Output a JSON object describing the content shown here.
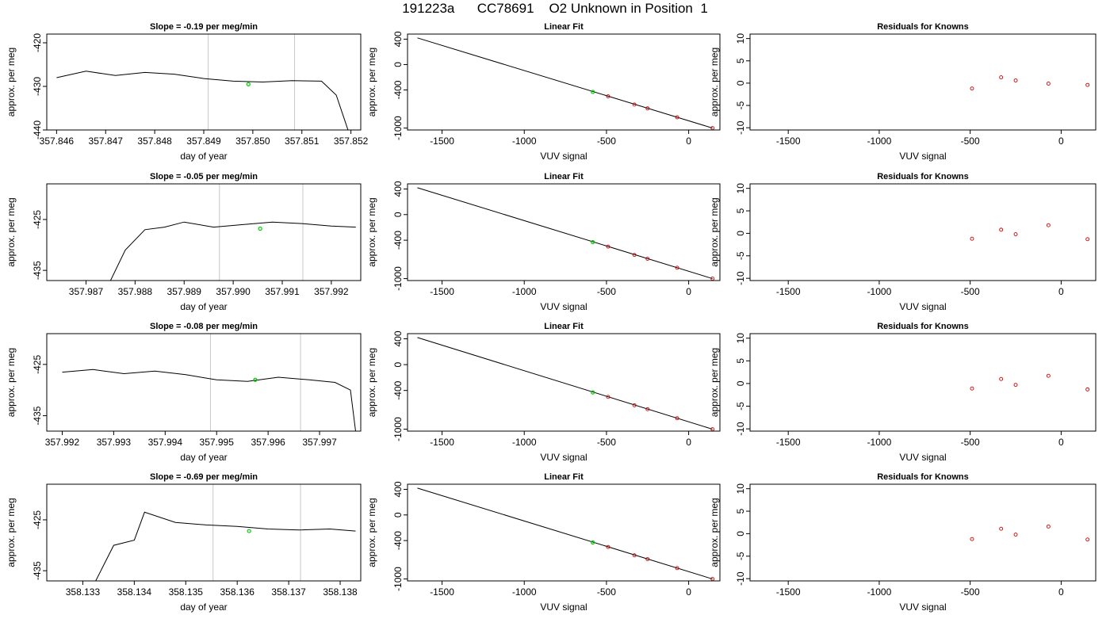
{
  "title": "191223a      CC78691    O2 Unknown in Position  1",
  "chart_data": [
    {
      "type": "line",
      "title": "Slope =  -0.19  per meg/min",
      "xlabel": "day of year",
      "ylabel": "approx. per meg",
      "xlim": [
        357.8458,
        357.8522
      ],
      "ylim": [
        -440,
        -418
      ],
      "xticks": [
        357.846,
        357.847,
        357.848,
        357.849,
        357.85,
        357.851,
        357.852
      ],
      "xtick_labels": [
        "357.846",
        "357.847",
        "357.848",
        "357.849",
        "357.850",
        "357.851",
        "357.852"
      ],
      "yticks": [
        -420,
        -430,
        -440
      ],
      "ytick_labels": [
        "-420",
        "-430",
        "-440"
      ],
      "vlines": [
        357.84909,
        357.85085
      ],
      "series": [
        {
          "x": [
            357.846,
            357.8466,
            357.8472,
            357.8478,
            357.8484,
            357.849,
            357.8496,
            357.8502,
            357.8508,
            357.8514,
            357.8517,
            357.852
          ],
          "y": [
            -428,
            -426.5,
            -427.5,
            -426.8,
            -427.2,
            -428.2,
            -428.8,
            -429.0,
            -428.7,
            -428.8,
            -432.0,
            -442.0
          ]
        }
      ],
      "marker": {
        "x": 357.84991,
        "y": -429.5
      }
    },
    {
      "type": "line",
      "title": "Linear Fit",
      "xlabel": "VUV signal",
      "ylabel": "approx. per meg",
      "xlim": [
        -1710,
        190
      ],
      "ylim": [
        -1030,
        480
      ],
      "xticks": [
        -1500,
        -1000,
        -500,
        0
      ],
      "xtick_labels": [
        "-1500",
        "-1000",
        "-500",
        "0"
      ],
      "yticks": [
        400,
        0,
        -400,
        -1000
      ],
      "ytick_labels": [
        "400",
        "0",
        "-400",
        "-1000"
      ],
      "fit_line": {
        "x": [
          -1650,
          145
        ],
        "y": [
          420,
          -1000
        ]
      },
      "points": {
        "x": [
          -490,
          -330,
          -250,
          -70,
          145
        ],
        "y": [
          -500,
          -630,
          -690,
          -830,
          -1000
        ]
      },
      "highlight": {
        "x": -583,
        "y": -430
      }
    },
    {
      "type": "scatter",
      "title": "Residuals for Knowns",
      "xlabel": "VUV signal",
      "ylabel": "approx. per meg",
      "xlim": [
        -1710,
        190
      ],
      "ylim": [
        -10.5,
        11
      ],
      "xticks": [
        -1500,
        -1000,
        -500,
        0
      ],
      "xtick_labels": [
        "-1500",
        "-1000",
        "-500",
        "0"
      ],
      "yticks": [
        10,
        5,
        0,
        -5,
        -10
      ],
      "ytick_labels": [
        "10",
        "5",
        "0",
        "-5",
        "-10"
      ],
      "points": {
        "x": [
          -490,
          -330,
          -250,
          -70,
          145
        ],
        "y": [
          -1.2,
          1.3,
          0.6,
          -0.1,
          -0.4
        ]
      }
    },
    {
      "type": "line",
      "title": "Slope =  -0.05  per meg/min",
      "xlabel": "day of year",
      "ylabel": "approx. per meg",
      "xlim": [
        357.9862,
        357.9926
      ],
      "ylim": [
        -437,
        -418
      ],
      "xticks": [
        357.987,
        357.988,
        357.989,
        357.99,
        357.991,
        357.992
      ],
      "xtick_labels": [
        "357.987",
        "357.988",
        "357.989",
        "357.990",
        "357.991",
        "357.992"
      ],
      "yticks": [
        -425,
        -435
      ],
      "ytick_labels": [
        "-425",
        "-435"
      ],
      "vlines": [
        357.98972,
        357.99142
      ],
      "series": [
        {
          "x": [
            357.9875,
            357.9878,
            357.9882,
            357.9886,
            357.989,
            357.9896,
            357.9902,
            357.9908,
            357.9914,
            357.992,
            357.9925
          ],
          "y": [
            -437.0,
            -431.0,
            -427.0,
            -426.5,
            -425.5,
            -426.5,
            -426.0,
            -425.5,
            -425.8,
            -426.3,
            -426.5
          ]
        }
      ],
      "marker": {
        "x": 357.99055,
        "y": -426.8
      }
    },
    {
      "type": "line",
      "title": "Linear Fit",
      "xlabel": "VUV signal",
      "ylabel": "approx. per meg",
      "xlim": [
        -1710,
        190
      ],
      "ylim": [
        -1030,
        480
      ],
      "xticks": [
        -1500,
        -1000,
        -500,
        0
      ],
      "xtick_labels": [
        "-1500",
        "-1000",
        "-500",
        "0"
      ],
      "yticks": [
        400,
        0,
        -400,
        -1000
      ],
      "ytick_labels": [
        "400",
        "0",
        "-400",
        "-1000"
      ],
      "fit_line": {
        "x": [
          -1650,
          145
        ],
        "y": [
          420,
          -1000
        ]
      },
      "points": {
        "x": [
          -490,
          -330,
          -250,
          -70,
          145
        ],
        "y": [
          -500,
          -630,
          -690,
          -830,
          -1000
        ]
      },
      "highlight": {
        "x": -583,
        "y": -430
      }
    },
    {
      "type": "scatter",
      "title": "Residuals for Knowns",
      "xlabel": "VUV signal",
      "ylabel": "approx. per meg",
      "xlim": [
        -1710,
        190
      ],
      "ylim": [
        -10.5,
        11
      ],
      "xticks": [
        -1500,
        -1000,
        -500,
        0
      ],
      "xtick_labels": [
        "-1500",
        "-1000",
        "-500",
        "0"
      ],
      "yticks": [
        10,
        5,
        0,
        -5,
        -10
      ],
      "ytick_labels": [
        "10",
        "5",
        "0",
        "-5",
        "-10"
      ],
      "points": {
        "x": [
          -490,
          -330,
          -250,
          -70,
          145
        ],
        "y": [
          -1.2,
          0.8,
          -0.2,
          1.8,
          -1.3
        ]
      }
    },
    {
      "type": "line",
      "title": "Slope =  -0.08  per meg/min",
      "xlabel": "day of year",
      "ylabel": "approx. per meg",
      "xlim": [
        357.9917,
        357.9978
      ],
      "ylim": [
        -438,
        -419
      ],
      "xticks": [
        357.992,
        357.993,
        357.994,
        357.995,
        357.996,
        357.997
      ],
      "xtick_labels": [
        "357.992",
        "357.993",
        "357.994",
        "357.995",
        "357.996",
        "357.997"
      ],
      "yticks": [
        -425,
        -435
      ],
      "ytick_labels": [
        "-425",
        "-435"
      ],
      "vlines": [
        357.99488,
        357.99663
      ],
      "series": [
        {
          "x": [
            357.992,
            357.9926,
            357.9932,
            357.9938,
            357.9944,
            357.995,
            357.9956,
            357.9962,
            357.9968,
            357.9973,
            357.9976,
            357.9977
          ],
          "y": [
            -426.5,
            -426.0,
            -426.8,
            -426.3,
            -427.0,
            -428.0,
            -428.3,
            -427.5,
            -428.0,
            -428.5,
            -430.0,
            -438.0
          ]
        }
      ],
      "marker": {
        "x": 357.99575,
        "y": -428.0
      }
    },
    {
      "type": "line",
      "title": "Linear Fit",
      "xlabel": "VUV signal",
      "ylabel": "approx. per meg",
      "xlim": [
        -1710,
        190
      ],
      "ylim": [
        -1030,
        480
      ],
      "xticks": [
        -1500,
        -1000,
        -500,
        0
      ],
      "xtick_labels": [
        "-1500",
        "-1000",
        "-500",
        "0"
      ],
      "yticks": [
        400,
        0,
        -400,
        -1000
      ],
      "ytick_labels": [
        "400",
        "0",
        "-400",
        "-1000"
      ],
      "fit_line": {
        "x": [
          -1650,
          145
        ],
        "y": [
          420,
          -1000
        ]
      },
      "points": {
        "x": [
          -490,
          -330,
          -250,
          -70,
          145
        ],
        "y": [
          -500,
          -630,
          -690,
          -830,
          -1000
        ]
      },
      "highlight": {
        "x": -583,
        "y": -430
      }
    },
    {
      "type": "scatter",
      "title": "Residuals for Knowns",
      "xlabel": "VUV signal",
      "ylabel": "approx. per meg",
      "xlim": [
        -1710,
        190
      ],
      "ylim": [
        -10.5,
        11
      ],
      "xticks": [
        -1500,
        -1000,
        -500,
        0
      ],
      "xtick_labels": [
        "-1500",
        "-1000",
        "-500",
        "0"
      ],
      "yticks": [
        10,
        5,
        0,
        -5,
        -10
      ],
      "ytick_labels": [
        "10",
        "5",
        "0",
        "-5",
        "-10"
      ],
      "points": {
        "x": [
          -490,
          -330,
          -250,
          -70,
          145
        ],
        "y": [
          -1.1,
          1.0,
          -0.3,
          1.7,
          -1.3
        ]
      }
    },
    {
      "type": "line",
      "title": "Slope =  -0.69  per meg/min",
      "xlabel": "day of year",
      "ylabel": "approx. per meg",
      "xlim": [
        358.1323,
        358.1384
      ],
      "ylim": [
        -437,
        -418
      ],
      "xticks": [
        358.133,
        358.134,
        358.135,
        358.136,
        358.137,
        358.138
      ],
      "xtick_labels": [
        "358.133",
        "358.134",
        "358.135",
        "358.136",
        "358.137",
        "358.138"
      ],
      "yticks": [
        -425,
        -435
      ],
      "ytick_labels": [
        "-425",
        "-435"
      ],
      "vlines": [
        358.13553,
        358.13723
      ],
      "series": [
        {
          "x": [
            358.13325,
            358.1336,
            358.134,
            358.1342,
            358.1348,
            358.1354,
            358.136,
            358.1366,
            358.1372,
            358.1378,
            358.1383
          ],
          "y": [
            -437.0,
            -430.0,
            -429.0,
            -423.5,
            -425.5,
            -426.0,
            -426.3,
            -426.8,
            -427.0,
            -426.8,
            -427.2
          ]
        }
      ],
      "marker": {
        "x": 358.13623,
        "y": -427.2
      }
    },
    {
      "type": "line",
      "title": "Linear Fit",
      "xlabel": "VUV signal",
      "ylabel": "approx. per meg",
      "xlim": [
        -1710,
        190
      ],
      "ylim": [
        -1030,
        480
      ],
      "xticks": [
        -1500,
        -1000,
        -500,
        0
      ],
      "xtick_labels": [
        "-1500",
        "-1000",
        "-500",
        "0"
      ],
      "yticks": [
        400,
        0,
        -400,
        -1000
      ],
      "ytick_labels": [
        "400",
        "0",
        "-400",
        "-1000"
      ],
      "fit_line": {
        "x": [
          -1650,
          145
        ],
        "y": [
          420,
          -1000
        ]
      },
      "points": {
        "x": [
          -490,
          -330,
          -250,
          -70,
          145
        ],
        "y": [
          -500,
          -630,
          -690,
          -830,
          -1000
        ]
      },
      "highlight": {
        "x": -583,
        "y": -430
      }
    },
    {
      "type": "scatter",
      "title": "Residuals for Knowns",
      "xlabel": "VUV signal",
      "ylabel": "approx. per meg",
      "xlim": [
        -1710,
        190
      ],
      "ylim": [
        -10.5,
        11
      ],
      "xticks": [
        -1500,
        -1000,
        -500,
        0
      ],
      "xtick_labels": [
        "-1500",
        "-1000",
        "-500",
        "0"
      ],
      "yticks": [
        10,
        5,
        0,
        -5,
        -10
      ],
      "ytick_labels": [
        "10",
        "5",
        "0",
        "-5",
        "-10"
      ],
      "points": {
        "x": [
          -490,
          -330,
          -250,
          -70,
          145
        ],
        "y": [
          -1.2,
          1.1,
          -0.2,
          1.6,
          -1.3
        ]
      }
    }
  ]
}
